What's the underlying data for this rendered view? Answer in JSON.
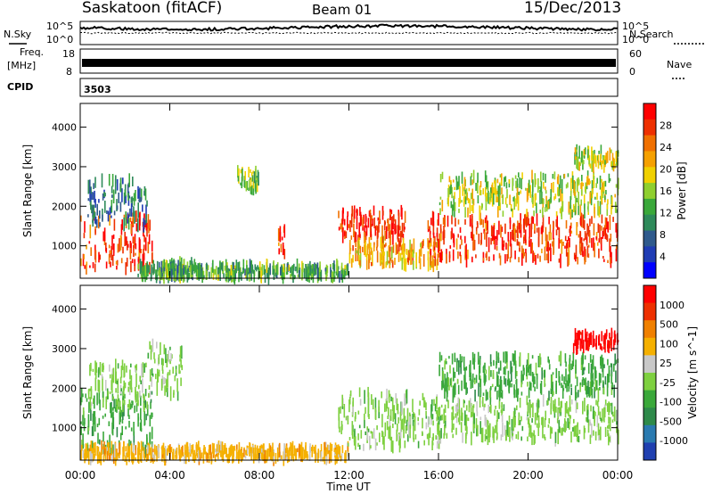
{
  "header": {
    "station": "Saskatoon (fitACF)",
    "beam": "Beam 01",
    "date": "15/Dec/2013"
  },
  "noise_panel": {
    "left_label": "N.Sky",
    "right_label": "N.Search",
    "left_ticks": [
      "10^5",
      "10^0"
    ],
    "right_ticks": [
      "10^5",
      "10^0"
    ]
  },
  "freq_panel": {
    "left_label_top": "Freq.",
    "left_label_bottom": "[MHz]",
    "right_label": "Nave",
    "left_ticks": [
      "18",
      "8"
    ],
    "right_ticks": [
      "60",
      "0"
    ]
  },
  "cpid_panel": {
    "label": "CPID",
    "value": "3503"
  },
  "x_axis": {
    "label": "Time UT",
    "ticks": [
      "00:00",
      "04:00",
      "08:00",
      "12:00",
      "16:00",
      "20:00",
      "00:00"
    ]
  },
  "chart_data": [
    {
      "type": "heatmap",
      "name": "Power",
      "ylabel": "Slant Range [km]",
      "y_ticks": [
        1000,
        2000,
        3000,
        4000
      ],
      "ylim": [
        180,
        4600
      ],
      "xlim": [
        "00:00",
        "24:00"
      ],
      "colorbar": {
        "label": "Power [dB]",
        "tick_labels": [
          "28",
          "24",
          "20",
          "16",
          "12",
          "8",
          "4"
        ],
        "range": [
          0,
          30
        ],
        "colors": [
          "#0000ff",
          "#1f3cb4",
          "#2f5a8c",
          "#2e8a5a",
          "#3aa83a",
          "#8fcf2f",
          "#f0d000",
          "#f5a000",
          "#f07000",
          "#ee3000",
          "#ff0000"
        ]
      },
      "regions": [
        {
          "t0": 0.0,
          "t1": 3.2,
          "r0": 400,
          "r1": 1800,
          "level": 26
        },
        {
          "t0": 0.3,
          "t1": 3.0,
          "r0": 1500,
          "r1": 2700,
          "level": 8
        },
        {
          "t0": 3.5,
          "t1": 5.0,
          "r0": 200,
          "r1": 600,
          "level": 10
        },
        {
          "t0": 7.0,
          "t1": 8.0,
          "r0": 2400,
          "r1": 2900,
          "level": 14
        },
        {
          "t0": 8.8,
          "t1": 9.1,
          "r0": 700,
          "r1": 1500,
          "level": 25
        },
        {
          "t0": 2.5,
          "t1": 12.0,
          "r0": 200,
          "r1": 500,
          "level": 12
        },
        {
          "t0": 11.5,
          "t1": 14.5,
          "r0": 1200,
          "r1": 1900,
          "level": 27
        },
        {
          "t0": 12.0,
          "t1": 16.0,
          "r0": 500,
          "r1": 1100,
          "level": 20
        },
        {
          "t0": 15.5,
          "t1": 24.0,
          "r0": 600,
          "r1": 1700,
          "level": 26
        },
        {
          "t0": 16.0,
          "t1": 24.0,
          "r0": 1800,
          "r1": 2800,
          "level": 16
        },
        {
          "t0": 22.0,
          "t1": 24.0,
          "r0": 3000,
          "r1": 3400,
          "level": 16
        }
      ]
    },
    {
      "type": "heatmap",
      "name": "Velocity",
      "ylabel": "Slant Range [km]",
      "y_ticks": [
        1000,
        2000,
        3000,
        4000
      ],
      "ylim": [
        180,
        4600
      ],
      "xlim": [
        "00:00",
        "24:00"
      ],
      "colorbar": {
        "label": "Velocity [m s^-1]",
        "tick_labels": [
          "1000",
          "500",
          "100",
          "25",
          "-25",
          "-100",
          "-500",
          "-1000"
        ],
        "colors": [
          "#2040b0",
          "#2a7ab0",
          "#2e8a4a",
          "#3aa83a",
          "#7ed040",
          "#c8c8c8",
          "#f5b000",
          "#f08000",
          "#ee3000",
          "#ff0000"
        ]
      },
      "regions": [
        {
          "t0": 0.0,
          "t1": 3.2,
          "r0": 400,
          "r1": 1900,
          "level": "-100"
        },
        {
          "t0": 0.3,
          "t1": 3.0,
          "r0": 1500,
          "r1": 2600,
          "level": "-25"
        },
        {
          "t0": 3.0,
          "t1": 4.6,
          "r0": 1800,
          "r1": 3100,
          "level": "-25"
        },
        {
          "t0": 0.0,
          "t1": 12.0,
          "r0": 200,
          "r1": 500,
          "level": "100"
        },
        {
          "t0": 11.5,
          "t1": 16.0,
          "r0": 500,
          "r1": 1900,
          "level": "-25"
        },
        {
          "t0": 15.5,
          "t1": 24.0,
          "r0": 700,
          "r1": 1700,
          "level": "-25"
        },
        {
          "t0": 16.0,
          "t1": 24.0,
          "r0": 1800,
          "r1": 2800,
          "level": "-100"
        },
        {
          "t0": 22.0,
          "t1": 24.0,
          "r0": 3000,
          "r1": 3400,
          "level": "1000"
        }
      ]
    }
  ]
}
